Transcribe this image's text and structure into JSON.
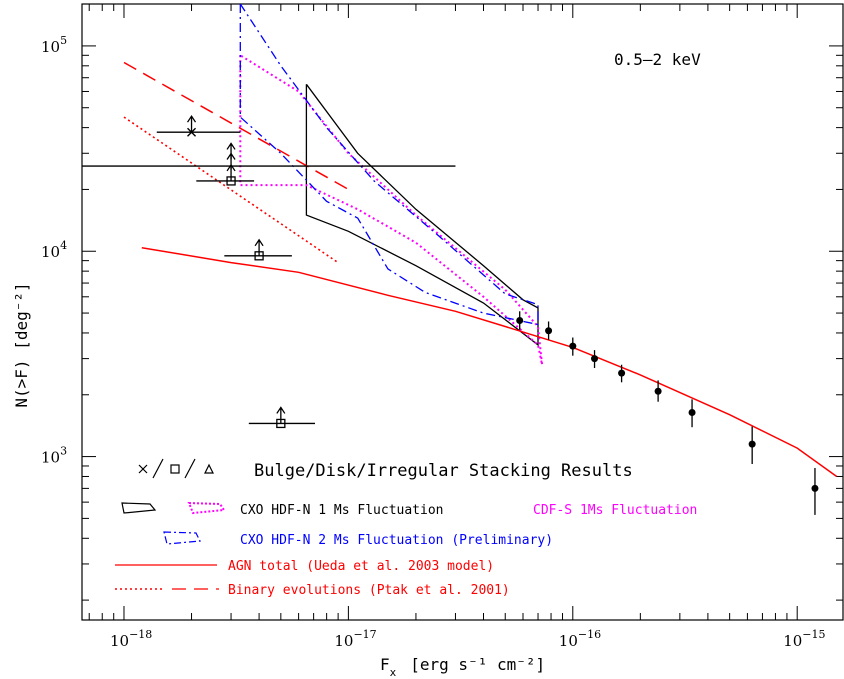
{
  "chart_data": {
    "type": "line",
    "xscale": "log",
    "yscale": "log",
    "xlim": [
      6.5e-19,
      1.6e-15
    ],
    "ylim": [
      160,
      160000
    ],
    "xlabel": "F",
    "xlabel_sub": "x",
    "xlabel_units": "[erg s⁻¹ cm⁻²]",
    "ylabel": "N(>F) [deg⁻²]",
    "energy_band": "0.5–2 keV",
    "x_ticks": [
      {
        "value": 1e-18,
        "mantissa": "10",
        "exp": "−18"
      },
      {
        "value": 1e-17,
        "mantissa": "10",
        "exp": "−17"
      },
      {
        "value": 1e-16,
        "mantissa": "10",
        "exp": "−16"
      },
      {
        "value": 1e-15,
        "mantissa": "10",
        "exp": "−15"
      }
    ],
    "y_ticks": [
      {
        "value": 1000,
        "mantissa": "10",
        "exp": "3"
      },
      {
        "value": 10000,
        "mantissa": "10",
        "exp": "4"
      },
      {
        "value": 100000,
        "mantissa": "10",
        "exp": "5"
      }
    ],
    "series": [
      {
        "key": "agn_total",
        "color": "#ff0000",
        "dash": "solid",
        "x": [
          1.2e-18,
          3e-18,
          6e-18,
          1.5e-17,
          3e-17,
          5e-17,
          1e-16,
          2e-16,
          5e-16,
          1e-15,
          1.5e-15
        ],
        "y": [
          10400,
          8800,
          7900,
          6100,
          5100,
          4300,
          3400,
          2500,
          1600,
          1100,
          800
        ]
      },
      {
        "key": "binary_dotted",
        "color": "#ff0000",
        "dash": "dotted",
        "x": [
          1e-18,
          9e-18
        ],
        "y": [
          45000,
          8800
        ]
      },
      {
        "key": "binary_dashed",
        "color": "#ff0000",
        "dash": "dashed",
        "x": [
          1e-18,
          1e-17
        ],
        "y": [
          83000,
          20000
        ]
      }
    ],
    "envelopes": [
      {
        "key": "hdfn_1ms",
        "color": "#000000",
        "dash": "solid",
        "x": [
          6.5e-18,
          6.5e-18,
          1e-17,
          2e-17,
          4e-17,
          7e-17,
          7e-17,
          6e-17,
          4e-17,
          2e-17,
          1.1e-17,
          6.5e-18
        ],
        "y": [
          65000,
          15000,
          12500,
          8500,
          5600,
          3500,
          5300,
          5800,
          8500,
          16000,
          30000,
          65000
        ]
      },
      {
        "key": "cdfs_1ms",
        "color": "#ff00ff",
        "dash": "dotted",
        "x": [
          3.3e-18,
          3.3e-18,
          6.5e-18,
          1.1e-17,
          2e-17,
          4e-17,
          7e-17,
          7.3e-17,
          7e-17,
          5e-17,
          2e-17,
          1e-17,
          6e-18,
          3.3e-18
        ],
        "y": [
          90000,
          21000,
          21000,
          16000,
          11000,
          6000,
          3500,
          2800,
          4300,
          6500,
          15000,
          30000,
          60000,
          90000
        ]
      },
      {
        "key": "hdfn_2ms",
        "color": "#0000ff",
        "dash": "dashdot",
        "x": [
          3.3e-18,
          3.3e-18,
          5e-18,
          8e-18,
          1.1e-17,
          1.5e-17,
          2.2e-17,
          4e-17,
          7e-17,
          7e-17,
          5e-17,
          2.5e-17,
          1.3e-17,
          8e-18,
          5e-18,
          3.3e-18
        ],
        "y": [
          160000,
          45000,
          30000,
          17500,
          14500,
          8200,
          6300,
          5000,
          4400,
          5500,
          6200,
          12000,
          22000,
          40000,
          80000,
          160000
        ]
      }
    ],
    "data_points": {
      "x": [
        5.8e-17,
        7.8e-17,
        1e-16,
        1.25e-16,
        1.65e-16,
        2.4e-16,
        3.4e-16,
        6.3e-16,
        1.2e-15
      ],
      "y": [
        4600,
        4100,
        3450,
        3000,
        2550,
        2080,
        1640,
        1150,
        700
      ],
      "err_lo": [
        4150,
        3700,
        3100,
        2700,
        2300,
        1850,
        1390,
        920,
        520
      ],
      "err_hi": [
        5100,
        4550,
        3800,
        3300,
        2800,
        2350,
        1900,
        1400,
        880
      ]
    },
    "stacking_points": [
      {
        "marker": "x",
        "x": 2e-18,
        "y": 38000,
        "x_err": [
          1.4e-18,
          3.3e-18
        ]
      },
      {
        "marker": "square",
        "x": 3e-18,
        "y": 22000,
        "x_err": [
          2.1e-18,
          3.8e-18
        ]
      },
      {
        "marker": "square",
        "x": 4e-18,
        "y": 9500,
        "x_err": [
          2.8e-18,
          5.6e-18
        ]
      },
      {
        "marker": "square",
        "x": 5e-18,
        "y": 1450,
        "x_err": [
          3.6e-18,
          7.1e-18
        ]
      }
    ],
    "stacking_arrows": [
      {
        "x": 2e-18,
        "y": 38000
      },
      {
        "x": 3e-18,
        "y": 22000
      },
      {
        "x": 3e-18,
        "y": 25000
      },
      {
        "x": 3e-18,
        "y": 28000
      },
      {
        "x": 4e-18,
        "y": 9500
      },
      {
        "x": 5e-18,
        "y": 1450
      }
    ],
    "hline": {
      "x": [
        6.5e-19,
        3e-17
      ],
      "y": 26000
    },
    "legend": {
      "stacking_label": "Bulge/Disk/Irregular Stacking Results",
      "hdfn_1ms_label": "CXO HDF-N 1 Ms Fluctuation",
      "cdfs_label": "CDF-S 1Ms Fluctuation",
      "hdfn_2ms_label": "CXO HDF-N 2 Ms Fluctuation (Preliminary)",
      "agn_label": "AGN total (Ueda et al. 2003 model)",
      "binary_label": "Binary evolutions (Ptak et al. 2001)"
    },
    "colors": {
      "black": "#000000",
      "red": "#ff0000",
      "magenta": "#ff00ff",
      "blue": "#0000ff"
    }
  }
}
